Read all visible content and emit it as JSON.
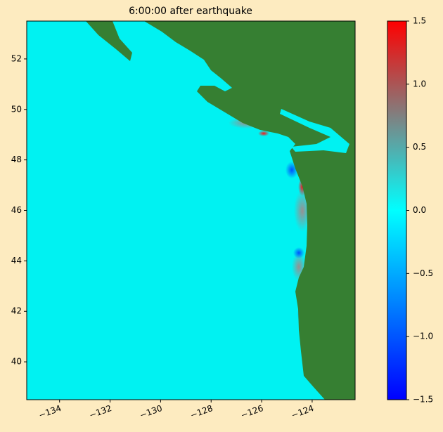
{
  "title": "6:00:00 after earthquake",
  "map": {
    "xlim": [
      -135.3,
      -122.3
    ],
    "ylim": [
      38.5,
      53.5
    ],
    "xticks": [
      {
        "value": -134,
        "label": "−134"
      },
      {
        "value": -132,
        "label": "−132"
      },
      {
        "value": -130,
        "label": "−130"
      },
      {
        "value": -128,
        "label": "−128"
      },
      {
        "value": -126,
        "label": "−126"
      },
      {
        "value": -124,
        "label": "−124"
      }
    ],
    "yticks": [
      40,
      42,
      44,
      46,
      48,
      50,
      52
    ],
    "ocean_color": "#00f2f2",
    "land_color": "#367f32"
  },
  "colorbar": {
    "lim": [
      -1.5,
      1.5
    ],
    "ticks": [
      {
        "value": -1.5,
        "label": "−1.5"
      },
      {
        "value": -1.0,
        "label": "−1.0"
      },
      {
        "value": -0.5,
        "label": "−0.5"
      },
      {
        "value": 0,
        "label": "0.0"
      },
      0.5,
      {
        "value": 1.0,
        "label": "1.0"
      },
      1.5
    ],
    "colormap": [
      {
        "value": -1.5,
        "color": "#0000ff"
      },
      {
        "value": 0,
        "color": "#00ffff"
      },
      {
        "value": 0.75,
        "color": "#808080"
      },
      {
        "value": 1.5,
        "color": "#ff0000"
      }
    ]
  }
}
